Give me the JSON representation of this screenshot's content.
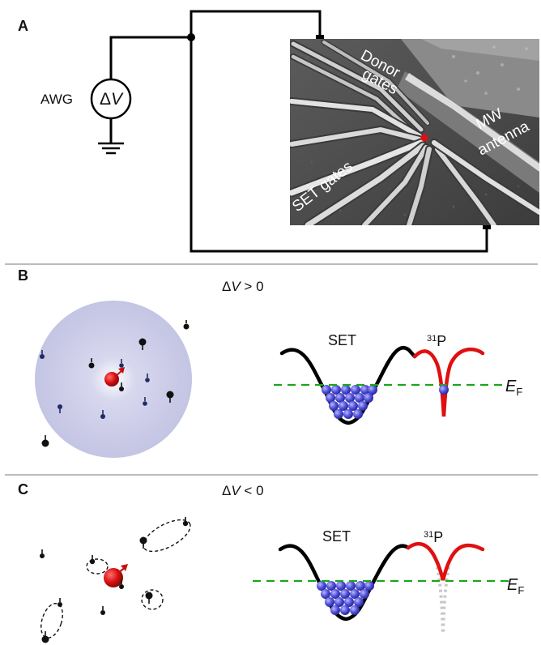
{
  "panels": {
    "a": {
      "label": "A",
      "awg_label": "AWG",
      "source_delta": "Δ",
      "source_v": "V",
      "sem_labels": {
        "donor_line1": "Donor",
        "donor_line2": "gates",
        "mw_line1": "MW",
        "mw_line2": "antenna",
        "set_gates": "SET gates"
      },
      "colors": {
        "donor_spot": "#e01010"
      }
    },
    "b": {
      "label": "B",
      "condition_delta": "Δ",
      "condition_v": "V",
      "condition_rest": " > 0",
      "set_label": "SET",
      "p_superscript": "31",
      "p_base": "P",
      "fermi_base": "E",
      "fermi_sub": "F",
      "colors": {
        "cloud": "#c9c9e6",
        "electron": "#e01010",
        "potential_p": "#e01010",
        "fermi": "#1aa61a",
        "sea": "#6a6adc"
      }
    },
    "c": {
      "label": "C",
      "condition_delta": "Δ",
      "condition_v": "V",
      "condition_rest": " < 0",
      "set_label": "SET",
      "p_superscript": "31",
      "p_base": "P",
      "fermi_base": "E",
      "fermi_sub": "F",
      "colors": {
        "electron": "#c31010",
        "potential_p": "#e01010",
        "fermi": "#1aa61a",
        "sea": "#6a6adc",
        "ghost_well": "#c8c8c8"
      }
    }
  }
}
